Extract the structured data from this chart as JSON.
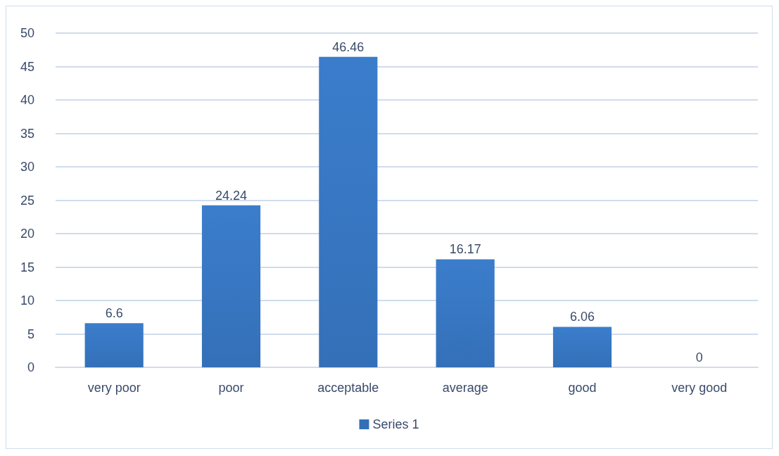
{
  "chart_data": {
    "type": "bar",
    "categories": [
      "very poor",
      "poor",
      "acceptable",
      "average",
      "good",
      "very good"
    ],
    "series": [
      {
        "name": "Series 1",
        "color": "#3470b8",
        "values": [
          6.6,
          24.24,
          46.46,
          16.17,
          6.06,
          0
        ]
      }
    ],
    "ylim": [
      0,
      50
    ],
    "yticks": [
      0,
      5,
      10,
      15,
      20,
      25,
      30,
      35,
      40,
      45,
      50
    ],
    "grid": "y",
    "legend": "bottom",
    "data_labels": true
  }
}
